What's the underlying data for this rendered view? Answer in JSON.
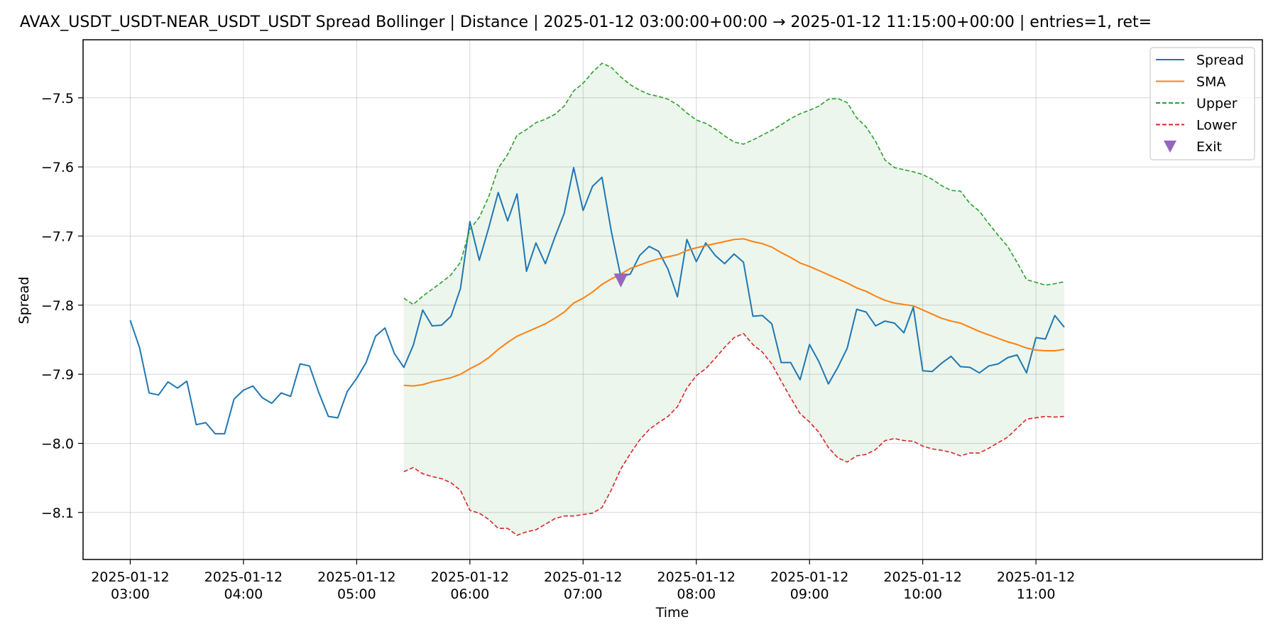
{
  "chart_data": {
    "type": "line",
    "title": "AVAX_USDT_USDT-NEAR_USDT_USDT Spread Bollinger  | Distance | 2025-01-12 03:00:00+00:00 → 2025-01-12 11:15:00+00:00 | entries=1, ret=",
    "xlabel": "Time",
    "ylabel": "Spread",
    "xlim": [
      -25,
      600
    ],
    "ylim": [
      -8.168,
      -7.416
    ],
    "grid": true,
    "legend_position": "top-right",
    "x_ticks": [
      {
        "minutes": 0,
        "line1": "2025-01-12",
        "line2": "03:00"
      },
      {
        "minutes": 60,
        "line1": "2025-01-12",
        "line2": "04:00"
      },
      {
        "minutes": 120,
        "line1": "2025-01-12",
        "line2": "05:00"
      },
      {
        "minutes": 180,
        "line1": "2025-01-12",
        "line2": "06:00"
      },
      {
        "minutes": 240,
        "line1": "2025-01-12",
        "line2": "07:00"
      },
      {
        "minutes": 300,
        "line1": "2025-01-12",
        "line2": "08:00"
      },
      {
        "minutes": 360,
        "line1": "2025-01-12",
        "line2": "09:00"
      },
      {
        "minutes": 420,
        "line1": "2025-01-12",
        "line2": "10:00"
      },
      {
        "minutes": 480,
        "line1": "2025-01-12",
        "line2": "11:00"
      }
    ],
    "y_ticks": [
      {
        "value": -7.5,
        "label": "−7.5"
      },
      {
        "value": -7.6,
        "label": "−7.6"
      },
      {
        "value": -7.7,
        "label": "−7.7"
      },
      {
        "value": -7.8,
        "label": "−7.8"
      },
      {
        "value": -7.9,
        "label": "−7.9"
      },
      {
        "value": -8.0,
        "label": "−8.0"
      },
      {
        "value": -8.1,
        "label": "−8.1"
      }
    ],
    "x_step_minutes": 5,
    "spread_start_minutes": 0,
    "bands_start_minutes": 145,
    "series": [
      {
        "name": "Spread",
        "color": "#1f77b4",
        "dash": "solid",
        "values": [
          -7.822,
          -7.862,
          -7.927,
          -7.93,
          -7.911,
          -7.92,
          -7.91,
          -7.973,
          -7.97,
          -7.986,
          -7.986,
          -7.936,
          -7.923,
          -7.917,
          -7.934,
          -7.942,
          -7.927,
          -7.932,
          -7.885,
          -7.888,
          -7.927,
          -7.961,
          -7.963,
          -7.925,
          -7.906,
          -7.883,
          -7.845,
          -7.833,
          -7.87,
          -7.89,
          -7.858,
          -7.807,
          -7.83,
          -7.829,
          -7.816,
          -7.776,
          -7.679,
          -7.735,
          -7.688,
          -7.637,
          -7.678,
          -7.639,
          -7.751,
          -7.71,
          -7.74,
          -7.702,
          -7.667,
          -7.601,
          -7.663,
          -7.628,
          -7.615,
          -7.694,
          -7.759,
          -7.755,
          -7.728,
          -7.715,
          -7.722,
          -7.748,
          -7.788,
          -7.705,
          -7.737,
          -7.71,
          -7.728,
          -7.74,
          -7.726,
          -7.738,
          -7.816,
          -7.815,
          -7.827,
          -7.883,
          -7.883,
          -7.908,
          -7.857,
          -7.882,
          -7.914,
          -7.89,
          -7.862,
          -7.806,
          -7.81,
          -7.83,
          -7.823,
          -7.826,
          -7.84,
          -7.803,
          -7.895,
          -7.896,
          -7.884,
          -7.874,
          -7.889,
          -7.89,
          -7.898,
          -7.888,
          -7.885,
          -7.876,
          -7.872,
          -7.898,
          -7.847,
          -7.849,
          -7.815,
          -7.832
        ]
      },
      {
        "name": "SMA",
        "color": "#ff7f0e",
        "dash": "solid",
        "values": [
          -7.916,
          -7.917,
          -7.915,
          -7.911,
          -7.908,
          -7.905,
          -7.9,
          -7.892,
          -7.885,
          -7.876,
          -7.864,
          -7.854,
          -7.845,
          -7.839,
          -7.833,
          -7.827,
          -7.819,
          -7.81,
          -7.797,
          -7.79,
          -7.781,
          -7.77,
          -7.762,
          -7.755,
          -7.747,
          -7.742,
          -7.737,
          -7.733,
          -7.73,
          -7.727,
          -7.721,
          -7.717,
          -7.714,
          -7.711,
          -7.708,
          -7.705,
          -7.704,
          -7.708,
          -7.711,
          -7.716,
          -7.724,
          -7.731,
          -7.739,
          -7.744,
          -7.75,
          -7.756,
          -7.762,
          -7.768,
          -7.775,
          -7.78,
          -7.787,
          -7.793,
          -7.797,
          -7.799,
          -7.801,
          -7.807,
          -7.813,
          -7.819,
          -7.823,
          -7.826,
          -7.832,
          -7.838,
          -7.843,
          -7.848,
          -7.853,
          -7.857,
          -7.862,
          -7.865,
          -7.866,
          -7.866,
          -7.864
        ]
      },
      {
        "name": "Upper",
        "color": "#2ca02c",
        "dash": "dashed",
        "values": [
          -7.79,
          -7.799,
          -7.787,
          -7.777,
          -7.767,
          -7.756,
          -7.738,
          -7.69,
          -7.673,
          -7.643,
          -7.602,
          -7.582,
          -7.554,
          -7.546,
          -7.536,
          -7.531,
          -7.524,
          -7.512,
          -7.49,
          -7.479,
          -7.463,
          -7.45,
          -7.456,
          -7.47,
          -7.481,
          -7.489,
          -7.495,
          -7.498,
          -7.502,
          -7.51,
          -7.522,
          -7.532,
          -7.537,
          -7.545,
          -7.555,
          -7.564,
          -7.567,
          -7.561,
          -7.554,
          -7.547,
          -7.539,
          -7.53,
          -7.523,
          -7.518,
          -7.512,
          -7.502,
          -7.501,
          -7.507,
          -7.529,
          -7.542,
          -7.563,
          -7.59,
          -7.601,
          -7.604,
          -7.607,
          -7.611,
          -7.618,
          -7.627,
          -7.634,
          -7.635,
          -7.653,
          -7.664,
          -7.682,
          -7.699,
          -7.715,
          -7.738,
          -7.763,
          -7.767,
          -7.771,
          -7.769,
          -7.766
        ]
      },
      {
        "name": "Lower",
        "color": "#d62728",
        "dash": "dashed",
        "values": [
          -8.041,
          -8.035,
          -8.044,
          -8.048,
          -8.051,
          -8.057,
          -8.068,
          -8.097,
          -8.101,
          -8.11,
          -8.123,
          -8.123,
          -8.133,
          -8.128,
          -8.125,
          -8.117,
          -8.109,
          -8.105,
          -8.105,
          -8.103,
          -8.101,
          -8.093,
          -8.067,
          -8.037,
          -8.015,
          -7.995,
          -7.98,
          -7.97,
          -7.961,
          -7.947,
          -7.92,
          -7.902,
          -7.892,
          -7.877,
          -7.861,
          -7.847,
          -7.841,
          -7.857,
          -7.868,
          -7.885,
          -7.91,
          -7.934,
          -7.957,
          -7.969,
          -7.984,
          -8.006,
          -8.021,
          -8.027,
          -8.018,
          -8.016,
          -8.009,
          -7.996,
          -7.993,
          -7.996,
          -7.997,
          -8.004,
          -8.008,
          -8.01,
          -8.013,
          -8.018,
          -8.014,
          -8.014,
          -8.007,
          -7.999,
          -7.991,
          -7.978,
          -7.965,
          -7.963,
          -7.961,
          -7.962,
          -7.961
        ]
      }
    ],
    "band_fill_color": "#2ca02c",
    "markers": [
      {
        "name": "Exit",
        "color": "#9467bd",
        "symbol": "triangle-down",
        "minutes": 260,
        "value": -7.764
      }
    ]
  }
}
